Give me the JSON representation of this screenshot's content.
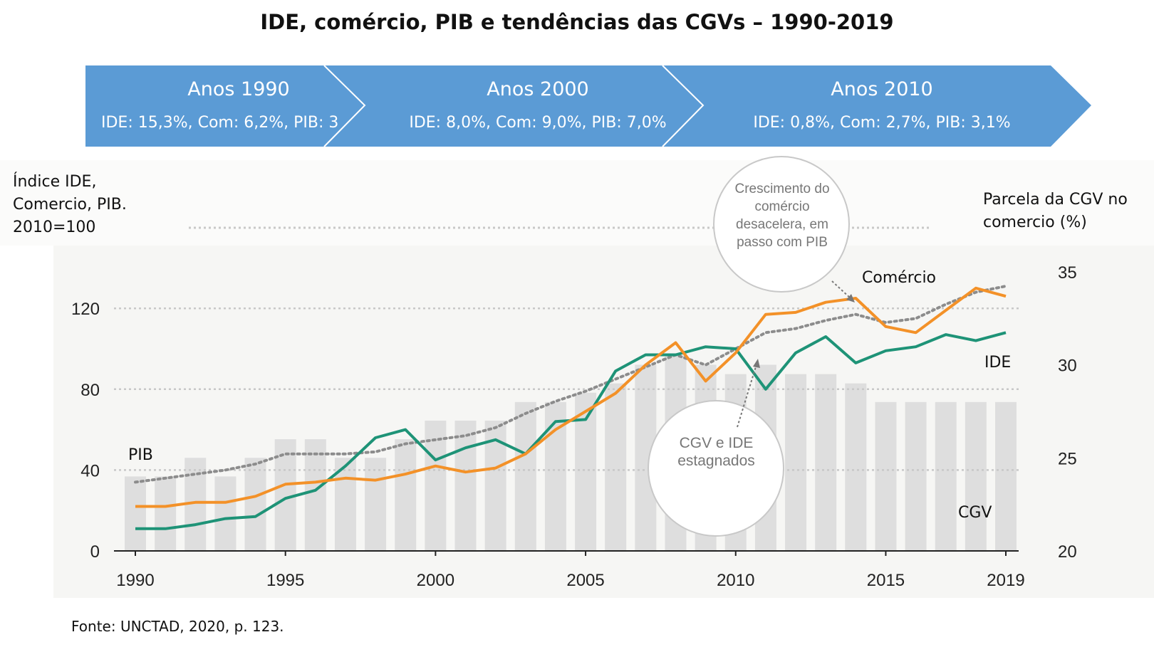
{
  "title": "IDE, comércio, PIB e tendências das CGVs – 1990-2019",
  "periods": [
    {
      "name": "Anos 1990",
      "stats": "IDE: 15,3%, Com: 6,2%, PIB: 3"
    },
    {
      "name": "Anos 2000",
      "stats": "IDE: 8,0%, Com: 9,0%, PIB: 7,0%"
    },
    {
      "name": "Anos 2010",
      "stats": "IDE: 0,8%, Com: 2,7%, PIB: 3,1%"
    }
  ],
  "colors": {
    "banner": "#5b9bd5",
    "comercio": "#f39128",
    "ide": "#1e9377",
    "pib": "#8c8c8c",
    "cgv_bars": "#dedede",
    "plot_bg": "#f6f6f4"
  },
  "annotations": {
    "trade_slowdown": "Crescimento do comércio desacelera, em passo com PIB",
    "stagnation": "CGV e IDE estagnados"
  },
  "source": "Fonte: UNCTAD, 2020, p. 123.",
  "chart_data": {
    "type": "line",
    "x": [
      1990,
      1991,
      1992,
      1993,
      1994,
      1995,
      1996,
      1997,
      1998,
      1999,
      2000,
      2001,
      2002,
      2003,
      2004,
      2005,
      2006,
      2007,
      2008,
      2009,
      2010,
      2011,
      2012,
      2013,
      2014,
      2015,
      2016,
      2017,
      2018,
      2019
    ],
    "xticks": [
      "1990",
      "1995",
      "2000",
      "2005",
      "2010",
      "2015",
      "2019"
    ],
    "ylabel_left": "Índice IDE, Comercio, PIB. 2010=100",
    "ylabel_right": "Parcela da CGV no comercio (%)",
    "yticks_left": [
      "0",
      "40",
      "80",
      "120"
    ],
    "yticks_right": [
      "20",
      "25",
      "30",
      "35"
    ],
    "ylim_left": [
      0,
      150
    ],
    "ylim_right": [
      20,
      35.5
    ],
    "series": [
      {
        "name": "Comércio",
        "axis": "left",
        "values": [
          22,
          22,
          24,
          24,
          27,
          33,
          34,
          36,
          35,
          38,
          42,
          39,
          41,
          48,
          60,
          69,
          78,
          92,
          103,
          84,
          98,
          117,
          118,
          123,
          125,
          111,
          108,
          119,
          130,
          126
        ]
      },
      {
        "name": "IDE",
        "axis": "left",
        "values": [
          11,
          11,
          13,
          16,
          17,
          26,
          30,
          42,
          56,
          60,
          45,
          51,
          55,
          48,
          64,
          65,
          89,
          97,
          97,
          101,
          100,
          80,
          98,
          106,
          93,
          99,
          101,
          107,
          104,
          108
        ]
      },
      {
        "name": "PIB",
        "axis": "left",
        "values": [
          34,
          36,
          38,
          40,
          43,
          48,
          48,
          48,
          49,
          53,
          55,
          57,
          61,
          68,
          74,
          79,
          85,
          91,
          97,
          92,
          100,
          108,
          110,
          114,
          117,
          113,
          115,
          122,
          128,
          131
        ]
      },
      {
        "name": "CGV",
        "axis": "right",
        "type": "bar",
        "values": [
          24,
          24,
          25,
          24,
          25,
          26,
          26,
          25,
          25,
          26,
          27,
          27,
          27,
          28,
          28,
          28.5,
          29,
          30,
          30.5,
          30,
          29.5,
          30,
          29.5,
          29.5,
          29,
          28,
          28,
          28,
          28,
          28
        ]
      }
    ]
  }
}
